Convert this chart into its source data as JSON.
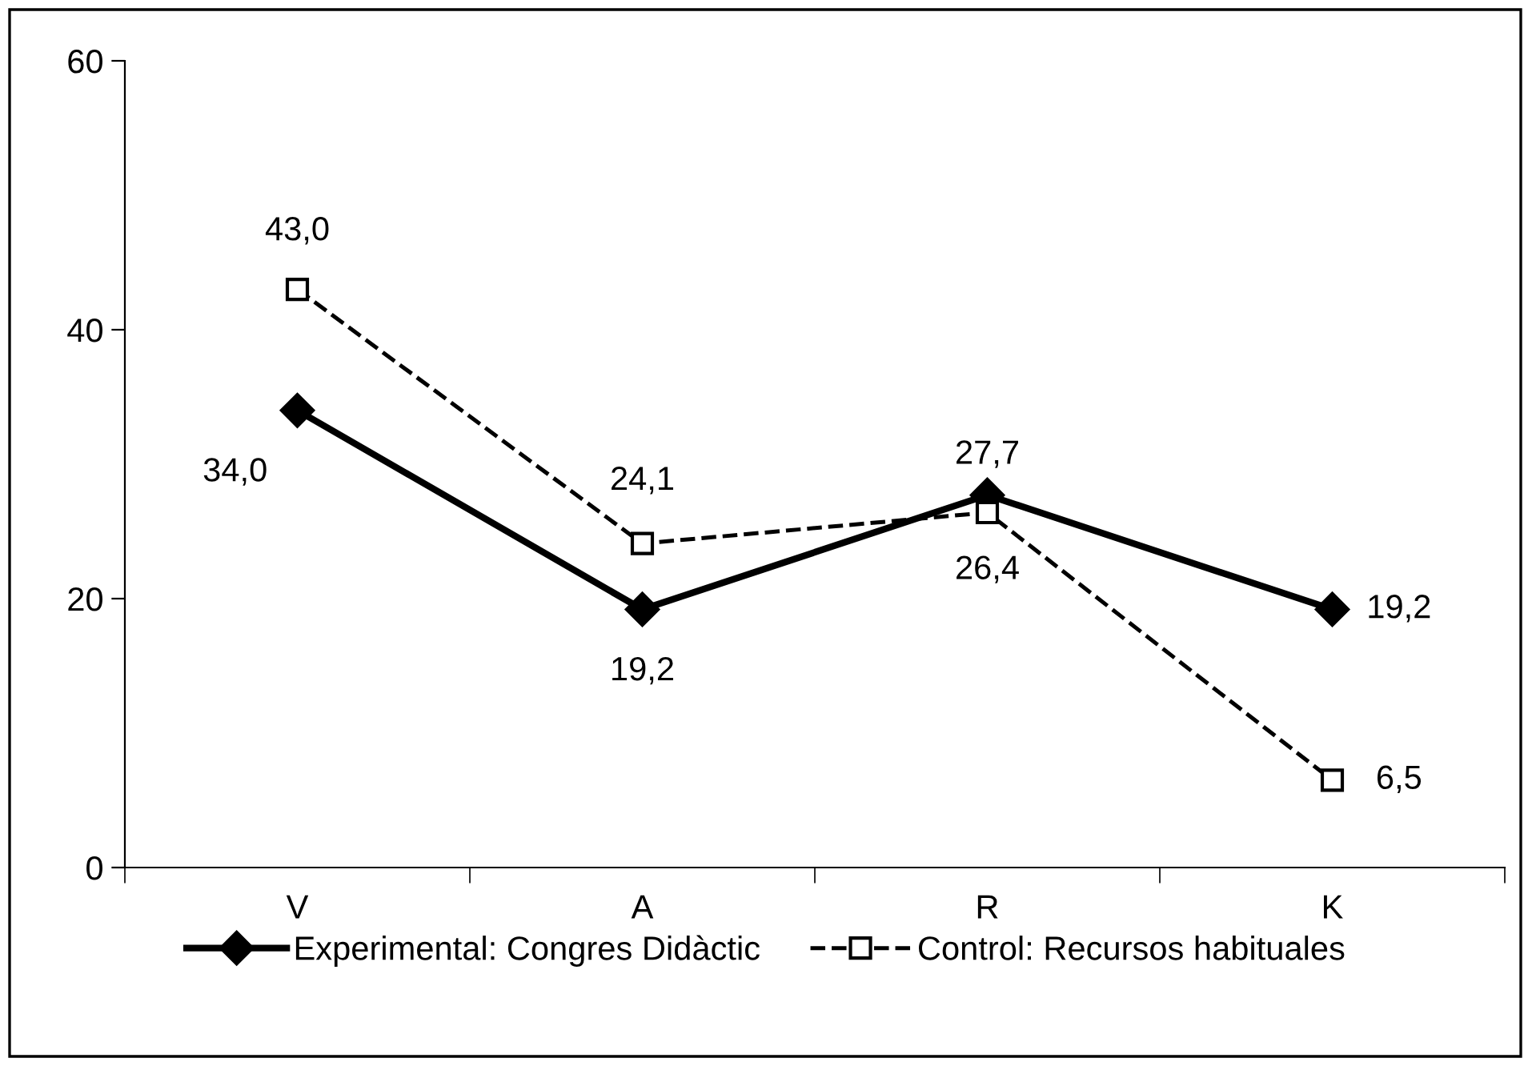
{
  "chart_data": {
    "type": "line",
    "categories": [
      "V",
      "A",
      "R",
      "K"
    ],
    "series": [
      {
        "name": "Experimental: Congres Didàctic",
        "color": "#000000",
        "values": [
          34.0,
          19.2,
          27.7,
          19.2
        ],
        "value_labels": [
          "34,0",
          "19,2",
          "27,7",
          "19,2"
        ],
        "marker": "diamond",
        "line_style": "solid"
      },
      {
        "name": "Control: Recursos habituales",
        "color": "#000000",
        "values": [
          43.0,
          24.1,
          26.4,
          6.5
        ],
        "value_labels": [
          "43,0",
          "24,1",
          "26,4",
          "6,5"
        ],
        "marker": "square",
        "line_style": "dashed"
      }
    ],
    "ylim": [
      0,
      60
    ],
    "yticks": [
      0,
      20,
      40,
      60
    ],
    "grid": false,
    "legend": "bottom"
  }
}
